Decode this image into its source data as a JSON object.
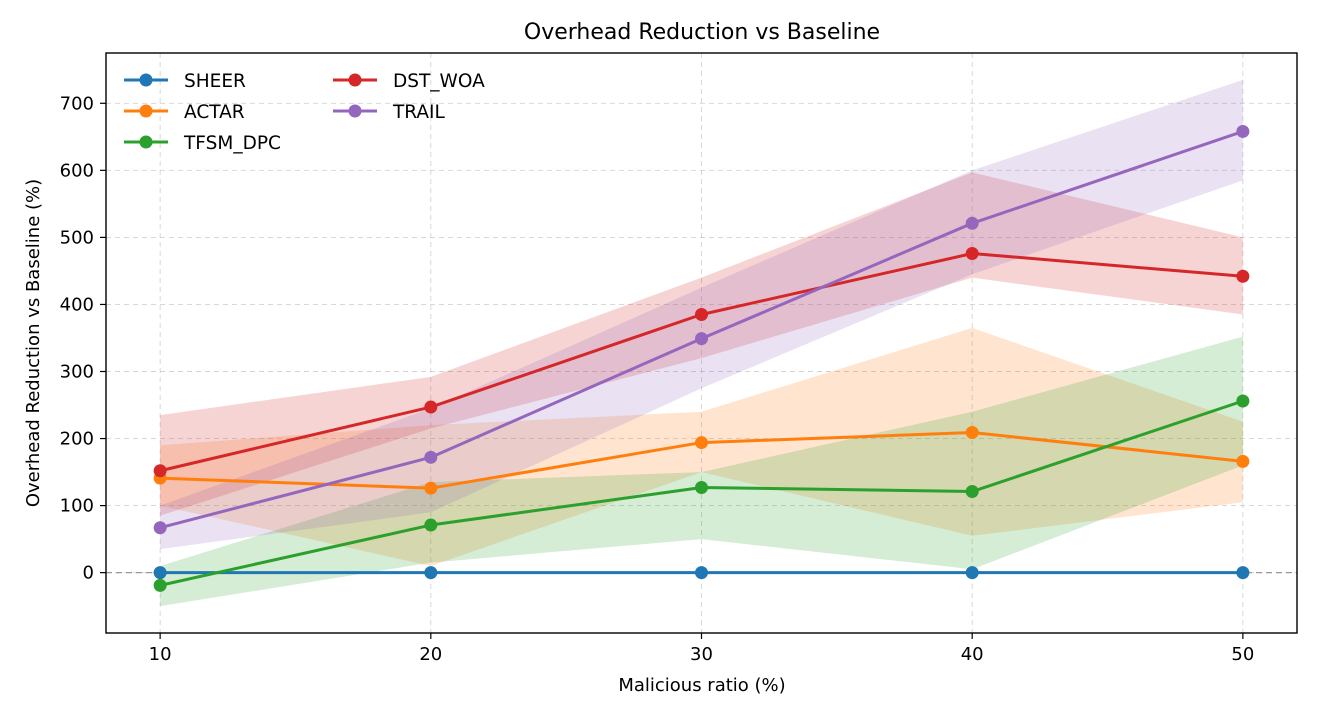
{
  "chart_data": {
    "type": "line",
    "title": "Overhead Reduction vs Baseline",
    "xlabel": "Malicious ratio (%)",
    "ylabel": "Overhead Reduction vs Baseline (%)",
    "x": [
      10,
      20,
      30,
      40,
      50
    ],
    "xlim": [
      8,
      52
    ],
    "ylim": [
      -90,
      775
    ],
    "xticks": [
      10,
      20,
      30,
      40,
      50
    ],
    "yticks": [
      0,
      100,
      200,
      300,
      400,
      500,
      600,
      700
    ],
    "grid": true,
    "legend_placement": "top-left",
    "reference_line": 0,
    "series": [
      {
        "name": "SHEER",
        "color": "#1f77b4",
        "values": [
          0,
          0,
          0,
          0,
          0
        ],
        "band_lower": [
          0,
          0,
          0,
          0,
          0
        ],
        "band_upper": [
          0,
          0,
          0,
          0,
          0
        ]
      },
      {
        "name": "ACTAR",
        "color": "#ff7f0e",
        "values": [
          141,
          126,
          194,
          209,
          166
        ],
        "band_lower": [
          100,
          10,
          150,
          55,
          105
        ],
        "band_upper": [
          190,
          220,
          240,
          365,
          225
        ]
      },
      {
        "name": "TFSM_DPC",
        "color": "#2ca02c",
        "values": [
          -19,
          71,
          127,
          121,
          256
        ],
        "band_lower": [
          -50,
          15,
          50,
          5,
          160
        ],
        "band_upper": [
          10,
          135,
          150,
          240,
          352
        ]
      },
      {
        "name": "DST_WOA",
        "color": "#d62728",
        "values": [
          152,
          247,
          385,
          476,
          442
        ],
        "band_lower": [
          85,
          215,
          320,
          440,
          385
        ],
        "band_upper": [
          235,
          292,
          440,
          597,
          500
        ]
      },
      {
        "name": "TRAIL",
        "color": "#9467bd",
        "values": [
          67,
          172,
          349,
          521,
          658
        ],
        "band_lower": [
          35,
          90,
          275,
          445,
          585
        ],
        "band_upper": [
          100,
          245,
          425,
          600,
          735
        ]
      }
    ]
  }
}
